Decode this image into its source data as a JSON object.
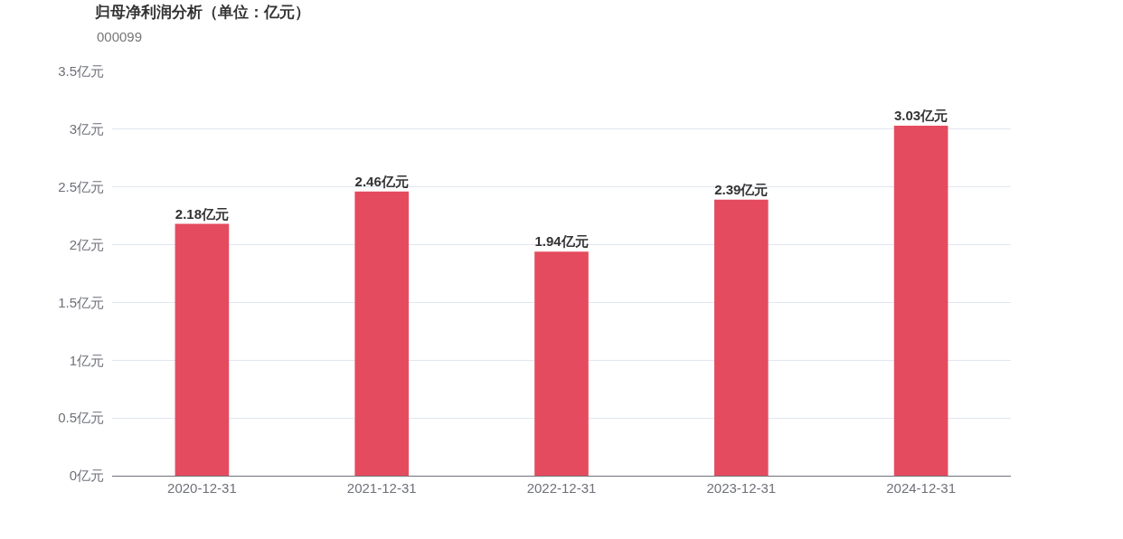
{
  "chart_data": {
    "type": "bar",
    "title": "归母净利润分析（单位：亿元）",
    "subtitle": "000099",
    "categories": [
      "2020-12-31",
      "2021-12-31",
      "2022-12-31",
      "2023-12-31",
      "2024-12-31"
    ],
    "values": [
      2.18,
      2.46,
      1.94,
      2.39,
      3.03
    ],
    "color": "#e54b5e",
    "value_labels": [
      "2.18亿元",
      "2.46亿元",
      "1.94亿元",
      "2.39亿元",
      "3.03亿元"
    ],
    "ylim": [
      0,
      3.5
    ],
    "yticks": [
      {
        "value": 0,
        "label": "0亿元"
      },
      {
        "value": 0.5,
        "label": "0.5亿元"
      },
      {
        "value": 1,
        "label": "1亿元"
      },
      {
        "value": 1.5,
        "label": "1.5亿元"
      },
      {
        "value": 2,
        "label": "2亿元"
      },
      {
        "value": 2.5,
        "label": "2.5亿元"
      },
      {
        "value": 3,
        "label": "3亿元"
      },
      {
        "value": 3.5,
        "label": "3.5亿元"
      }
    ],
    "grid": "y"
  }
}
